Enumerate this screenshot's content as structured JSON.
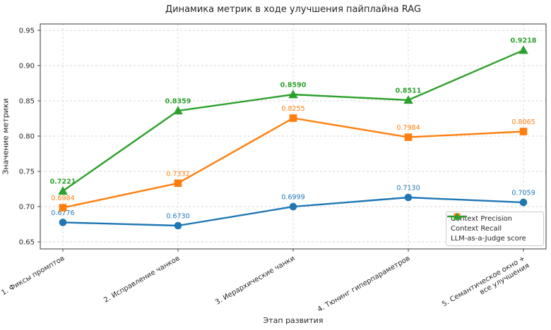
{
  "chart_data": {
    "type": "line",
    "title": "Динамика метрик в ходе улучшения пайплайна RAG",
    "xlabel": "Этап развития",
    "ylabel": "Значение метрики",
    "categories": [
      "1. Фиксы промптов",
      "2. Исправление чанков",
      "3. Иерархические чанки",
      "4. Тюнинг гиперпараметров",
      "5. Семантическое окно +\nвсе улучшения"
    ],
    "series": [
      {
        "name": "Context Precision",
        "marker": "circle",
        "color": "#1f77b4",
        "bold_labels": false,
        "values": [
          0.6776,
          0.673,
          0.6999,
          0.713,
          0.7059
        ]
      },
      {
        "name": "Context Recall",
        "marker": "square",
        "color": "#ff7f0e",
        "bold_labels": false,
        "values": [
          0.6984,
          0.7332,
          0.8255,
          0.7984,
          0.8065
        ]
      },
      {
        "name": "LLM-as-a-Judge score",
        "marker": "triangle",
        "color": "#2ca02c",
        "bold_labels": true,
        "values": [
          0.7221,
          0.8359,
          0.859,
          0.8511,
          0.9218
        ]
      }
    ],
    "yticks": [
      0.65,
      0.7,
      0.75,
      0.8,
      0.85,
      0.9,
      0.95
    ],
    "ylim": [
      0.64,
      0.959
    ],
    "grid": true,
    "grid_style": "dashed",
    "legend_position": "lower right",
    "value_labels": true,
    "value_label_decimals": 4,
    "ytick_decimals": 2
  }
}
